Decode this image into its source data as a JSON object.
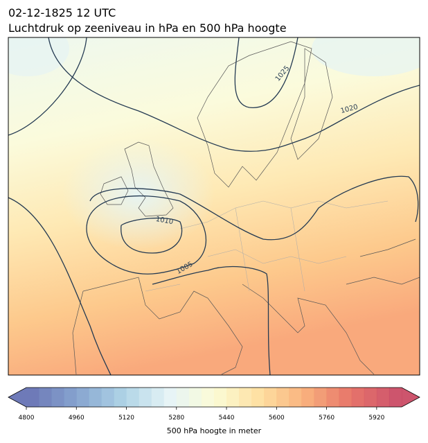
{
  "header": {
    "date": "02-12-1825 12 UTC",
    "title": "Luchtdruk op zeeniveau in hPa en 500 hPa hoogte"
  },
  "map": {
    "contour_labels": [
      1025,
      1020,
      1010,
      1005
    ]
  },
  "colorbar": {
    "label": "500 hPa hoogte in meter",
    "range": [
      4800,
      6000
    ],
    "step": 40,
    "ticks": [
      4800,
      4960,
      5120,
      5280,
      5440,
      5600,
      5760,
      5920
    ]
  }
}
